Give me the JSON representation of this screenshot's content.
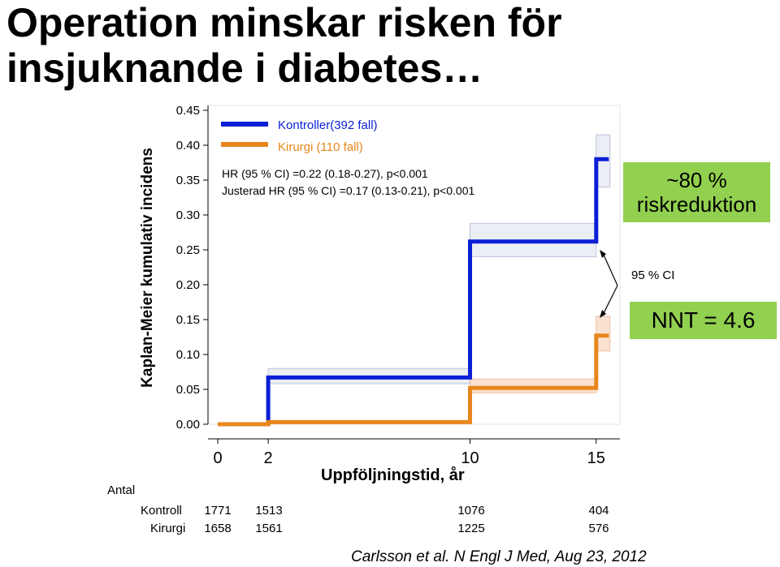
{
  "slide": {
    "title_line1": "Operation minskar risken för",
    "title_line2": "insjuknande i diabetes…"
  },
  "chart_data": {
    "type": "line",
    "subtype": "kaplan-meier-step",
    "ylabel": "Kaplan-Meier kumulativ incidens",
    "xlabel": "Uppföljningstid, år",
    "ylim": [
      0,
      0.45
    ],
    "xlim": [
      0,
      15
    ],
    "yticks": [
      "0.00",
      "0.05",
      "0.10",
      "0.15",
      "0.20",
      "0.25",
      "0.30",
      "0.35",
      "0.40",
      "0.45"
    ],
    "xticks": [
      "0",
      "2",
      "10",
      "15"
    ],
    "series": [
      {
        "name": "Kontroller(392 fall)",
        "color": "#0a1fd6",
        "steps": [
          [
            0,
            0.0
          ],
          [
            2,
            0.0
          ],
          [
            2,
            0.067
          ],
          [
            10,
            0.067
          ],
          [
            10,
            0.262
          ],
          [
            15,
            0.262
          ],
          [
            15,
            0.38
          ],
          [
            15.5,
            0.38
          ]
        ],
        "ci": [
          [
            2,
            0.058,
            0.08
          ],
          [
            10,
            0.24,
            0.288
          ],
          [
            15,
            0.34,
            0.415
          ]
        ]
      },
      {
        "name": "Kirurgi (110 fall)",
        "color": "#e8861d",
        "steps": [
          [
            0,
            0.0
          ],
          [
            2,
            0.0
          ],
          [
            2,
            0.003
          ],
          [
            10,
            0.003
          ],
          [
            10,
            0.052
          ],
          [
            15,
            0.052
          ],
          [
            15,
            0.127
          ],
          [
            15.5,
            0.127
          ]
        ],
        "ci": [
          [
            10,
            0.045,
            0.065
          ],
          [
            15,
            0.105,
            0.155
          ]
        ]
      }
    ],
    "annotations": {
      "hr": "HR (95 % CI) =0.22 (0.18-0.27), p<0.001",
      "adjusted_hr": "Justerad HR (95 % CI) =0.17 (0.13-0.21), p<0.001"
    },
    "legend_placement": "top-left",
    "grid": false
  },
  "callouts": {
    "reduction_line1": "~80 %",
    "reduction_line2": "riskreduktion",
    "ci_label": "95 % CI",
    "nnt": "NNT = 4.6",
    "box_color": "#92d050"
  },
  "risk_table": {
    "title": "Antal",
    "rows": [
      {
        "label": "Kontroll",
        "values": [
          "1771",
          "1513",
          "1076",
          "404"
        ]
      },
      {
        "label": "Kirurgi",
        "values": [
          "1658",
          "1561",
          "1225",
          "576"
        ]
      }
    ]
  },
  "citation": "Carlsson et al. N Engl J Med, Aug 23, 2012"
}
